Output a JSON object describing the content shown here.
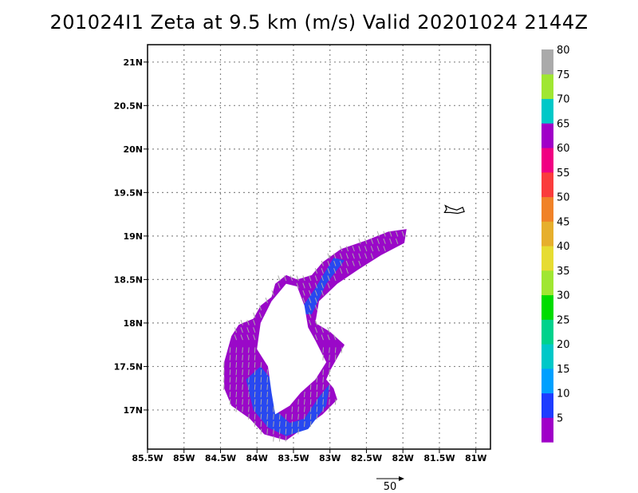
{
  "title": "201024I1  Zeta at 9.5 km (m/s) Valid 20201024  2144Z",
  "chart_data": {
    "type": "heatmap",
    "title": "201024I1  Zeta at 9.5 km (m/s) Valid 20201024  2144Z",
    "xlabel": "",
    "ylabel": "",
    "xlim": [
      -85.5,
      -80.8
    ],
    "ylim": [
      16.55,
      21.2
    ],
    "x_ticks": [
      {
        "value": -85.5,
        "label": "85.5W"
      },
      {
        "value": -85.0,
        "label": "85W"
      },
      {
        "value": -84.5,
        "label": "84.5W"
      },
      {
        "value": -84.0,
        "label": "84W"
      },
      {
        "value": -83.5,
        "label": "83.5W"
      },
      {
        "value": -83.0,
        "label": "83W"
      },
      {
        "value": -82.5,
        "label": "82.5W"
      },
      {
        "value": -82.0,
        "label": "82W"
      },
      {
        "value": -81.5,
        "label": "81.5W"
      },
      {
        "value": -81.0,
        "label": "81W"
      }
    ],
    "y_ticks": [
      {
        "value": 17.0,
        "label": "17N"
      },
      {
        "value": 17.5,
        "label": "17.5N"
      },
      {
        "value": 18.0,
        "label": "18N"
      },
      {
        "value": 18.5,
        "label": "18.5N"
      },
      {
        "value": 19.0,
        "label": "19N"
      },
      {
        "value": 19.5,
        "label": "19.5N"
      },
      {
        "value": 20.0,
        "label": "20N"
      },
      {
        "value": 20.5,
        "label": "20.5N"
      },
      {
        "value": 21.0,
        "label": "21N"
      }
    ],
    "grid": true,
    "colorbar": {
      "labels": [
        "5",
        "10",
        "15",
        "20",
        "25",
        "30",
        "35",
        "40",
        "45",
        "50",
        "55",
        "60",
        "65",
        "70",
        "75",
        "80"
      ],
      "colors": [
        "#a000c8",
        "#1e3cff",
        "#00a0ff",
        "#00c8c8",
        "#00d28c",
        "#00dc00",
        "#a0e632",
        "#e6dc32",
        "#e6af2d",
        "#f08228",
        "#fa3c3c",
        "#f00082",
        "#a000c8",
        "#00c8c8",
        "#a0e632",
        "#aaaaaa"
      ]
    },
    "field_regions": [
      {
        "name": "main-echo",
        "value": 5,
        "color": "#9a08c8",
        "polygon": [
          [
            -84.45,
            17.25
          ],
          [
            -84.45,
            17.55
          ],
          [
            -84.35,
            17.85
          ],
          [
            -84.25,
            17.98
          ],
          [
            -84.05,
            18.05
          ],
          [
            -83.95,
            18.2
          ],
          [
            -83.8,
            18.3
          ],
          [
            -83.75,
            18.45
          ],
          [
            -83.6,
            18.55
          ],
          [
            -83.45,
            18.5
          ],
          [
            -83.25,
            18.55
          ],
          [
            -83.1,
            18.7
          ],
          [
            -82.85,
            18.85
          ],
          [
            -82.5,
            18.95
          ],
          [
            -82.2,
            19.05
          ],
          [
            -81.95,
            19.08
          ],
          [
            -81.98,
            18.92
          ],
          [
            -82.3,
            18.78
          ],
          [
            -82.6,
            18.62
          ],
          [
            -82.9,
            18.45
          ],
          [
            -83.15,
            18.25
          ],
          [
            -83.2,
            18.0
          ],
          [
            -83.0,
            17.9
          ],
          [
            -82.8,
            17.75
          ],
          [
            -83.0,
            17.45
          ],
          [
            -83.05,
            17.35
          ],
          [
            -82.95,
            17.25
          ],
          [
            -82.9,
            17.12
          ],
          [
            -83.1,
            16.95
          ],
          [
            -83.35,
            16.8
          ],
          [
            -83.6,
            16.65
          ],
          [
            -83.9,
            16.72
          ],
          [
            -84.1,
            16.9
          ],
          [
            -84.35,
            17.05
          ]
        ]
      },
      {
        "name": "blue-band-south",
        "value": 10,
        "color": "#2848f0",
        "polygon": [
          [
            -84.15,
            17.35
          ],
          [
            -83.95,
            17.5
          ],
          [
            -83.8,
            17.35
          ],
          [
            -83.75,
            17.0
          ],
          [
            -83.55,
            16.85
          ],
          [
            -83.35,
            16.9
          ],
          [
            -83.15,
            17.15
          ],
          [
            -83.0,
            17.3
          ],
          [
            -83.05,
            17.05
          ],
          [
            -83.3,
            16.78
          ],
          [
            -83.6,
            16.7
          ],
          [
            -83.85,
            16.8
          ],
          [
            -84.05,
            17.0
          ]
        ]
      },
      {
        "name": "blue-band-north",
        "value": 10,
        "color": "#2848f0",
        "polygon": [
          [
            -83.45,
            18.1
          ],
          [
            -83.2,
            18.4
          ],
          [
            -82.95,
            18.75
          ],
          [
            -82.8,
            18.72
          ],
          [
            -83.05,
            18.45
          ],
          [
            -83.25,
            18.1
          ]
        ]
      },
      {
        "name": "eye",
        "value": 0,
        "color": "#ffffff",
        "polygon": [
          [
            -83.95,
            18.0
          ],
          [
            -83.8,
            18.25
          ],
          [
            -83.6,
            18.45
          ],
          [
            -83.45,
            18.42
          ],
          [
            -83.35,
            18.2
          ],
          [
            -83.3,
            17.95
          ],
          [
            -83.2,
            17.8
          ],
          [
            -83.05,
            17.55
          ],
          [
            -83.2,
            17.35
          ],
          [
            -83.4,
            17.2
          ],
          [
            -83.55,
            17.05
          ],
          [
            -83.75,
            16.95
          ],
          [
            -83.8,
            17.2
          ],
          [
            -83.85,
            17.5
          ],
          [
            -84.0,
            17.7
          ]
        ]
      }
    ],
    "island_outline": [
      [
        -81.42,
        19.35
      ],
      [
        -81.35,
        19.32
      ],
      [
        -81.26,
        19.3
      ],
      [
        -81.18,
        19.33
      ],
      [
        -81.16,
        19.28
      ],
      [
        -81.25,
        19.26
      ],
      [
        -81.35,
        19.27
      ],
      [
        -81.43,
        19.27
      ],
      [
        -81.4,
        19.31
      ]
    ],
    "vector_reference": {
      "label": "50",
      "value": 50
    }
  }
}
